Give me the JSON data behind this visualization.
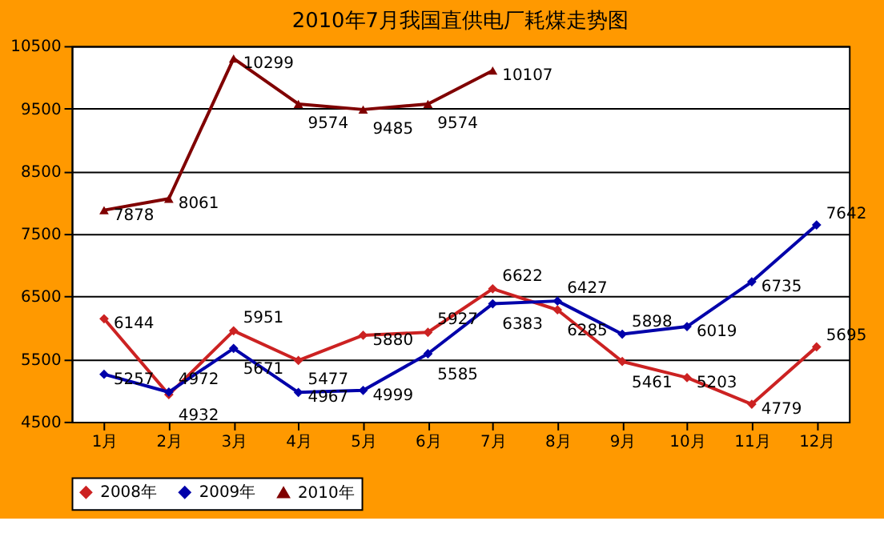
{
  "chart_data": {
    "type": "line",
    "title": "2010年7月我国直供电厂耗煤走势图",
    "categories": [
      "1月",
      "2月",
      "3月",
      "4月",
      "5月",
      "6月",
      "7月",
      "8月",
      "9月",
      "10月",
      "11月",
      "12月"
    ],
    "series": [
      {
        "name": "2008年",
        "color": "#cc2222",
        "marker": "diamond",
        "values": [
          6144,
          4932,
          5951,
          5477,
          5880,
          5927,
          6622,
          6285,
          5461,
          5203,
          4779,
          5695
        ]
      },
      {
        "name": "2009年",
        "color": "#0000aa",
        "marker": "diamond",
        "values": [
          5257,
          4972,
          5671,
          4967,
          4999,
          5585,
          6383,
          6427,
          5898,
          6019,
          6735,
          7642
        ]
      },
      {
        "name": "2010年",
        "color": "#800000",
        "marker": "triangle",
        "values": [
          7878,
          8061,
          10299,
          9574,
          9485,
          9574,
          10107,
          null,
          null,
          null,
          null,
          null
        ]
      }
    ],
    "ylim": [
      4500,
      10500
    ],
    "yticks": [
      4500,
      5500,
      6500,
      7500,
      8500,
      9500,
      10500
    ],
    "grid": "y",
    "legend": "bottom",
    "data_labels": true,
    "line_style": "solid"
  }
}
